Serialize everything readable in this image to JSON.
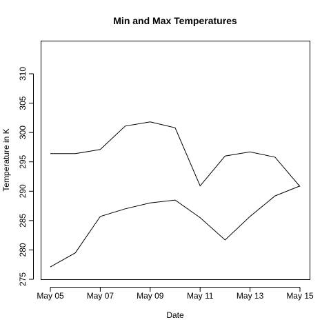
{
  "chart_data": {
    "type": "line",
    "title": "Min and Max Temperatures",
    "xlabel": "Date",
    "ylabel": "Temperature in K",
    "x": [
      "May 05",
      "May 06",
      "May 07",
      "May 08",
      "May 09",
      "May 10",
      "May 11",
      "May 12",
      "May 13",
      "May 14",
      "May 15"
    ],
    "x_tick_labels": [
      "May 05",
      "May 07",
      "May 09",
      "May 11",
      "May 13",
      "May 15"
    ],
    "y_ticks": [
      275,
      280,
      285,
      290,
      295,
      300,
      305,
      310
    ],
    "ylim": [
      275,
      311
    ],
    "grid": false,
    "legend": "none",
    "series": [
      {
        "values": [
          296.4,
          296.4,
          297.1,
          301.1,
          301.8,
          300.8,
          290.9,
          296.0,
          296.7,
          295.8,
          290.8
        ]
      },
      {
        "values": [
          277.1,
          279.5,
          285.7,
          287.0,
          288.0,
          288.5,
          285.5,
          281.7,
          285.7,
          289.2,
          290.9
        ]
      }
    ]
  }
}
